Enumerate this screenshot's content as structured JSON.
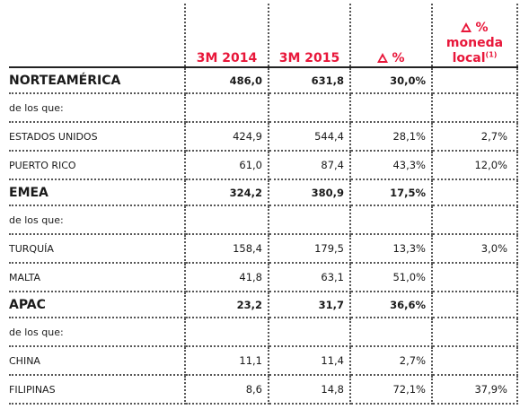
{
  "header": {
    "col1": "3M 2014",
    "col2": "3M 2015",
    "col3": "%",
    "col4_line1": "%",
    "col4_line2": "moneda",
    "col4_line3": "local",
    "col4_sup": "(1)"
  },
  "rows": [
    {
      "type": "main",
      "name": "NORTEAMÉRICA",
      "v2014": "486,0",
      "v2015": "631,8",
      "delta": "30,0%",
      "local": ""
    },
    {
      "type": "sub",
      "name": "de los que:",
      "v2014": "",
      "v2015": "",
      "delta": "",
      "local": ""
    },
    {
      "type": "sub",
      "name": "ESTADOS UNIDOS",
      "v2014": "424,9",
      "v2015": "544,4",
      "delta": "28,1%",
      "local": "2,7%"
    },
    {
      "type": "sub",
      "name": "PUERTO RICO",
      "v2014": "61,0",
      "v2015": "87,4",
      "delta": "43,3%",
      "local": "12,0%"
    },
    {
      "type": "main",
      "name": "EMEA",
      "v2014": "324,2",
      "v2015": "380,9",
      "delta": "17,5%",
      "local": ""
    },
    {
      "type": "sub",
      "name": "de los que:",
      "v2014": "",
      "v2015": "",
      "delta": "",
      "local": ""
    },
    {
      "type": "sub",
      "name": "TURQUÍA",
      "v2014": "158,4",
      "v2015": "179,5",
      "delta": "13,3%",
      "local": "3,0%"
    },
    {
      "type": "sub",
      "name": "MALTA",
      "v2014": "41,8",
      "v2015": "63,1",
      "delta": "51,0%",
      "local": ""
    },
    {
      "type": "main",
      "name": "APAC",
      "v2014": "23,2",
      "v2015": "31,7",
      "delta": "36,6%",
      "local": ""
    },
    {
      "type": "sub",
      "name": "de los que:",
      "v2014": "",
      "v2015": "",
      "delta": "",
      "local": ""
    },
    {
      "type": "sub",
      "name": "CHINA",
      "v2014": "11,1",
      "v2015": "11,4",
      "delta": "2,7%",
      "local": ""
    },
    {
      "type": "sub",
      "name": "FILIPINAS",
      "v2014": "8,6",
      "v2015": "14,8",
      "delta": "72,1%",
      "local": "37,9%"
    }
  ]
}
